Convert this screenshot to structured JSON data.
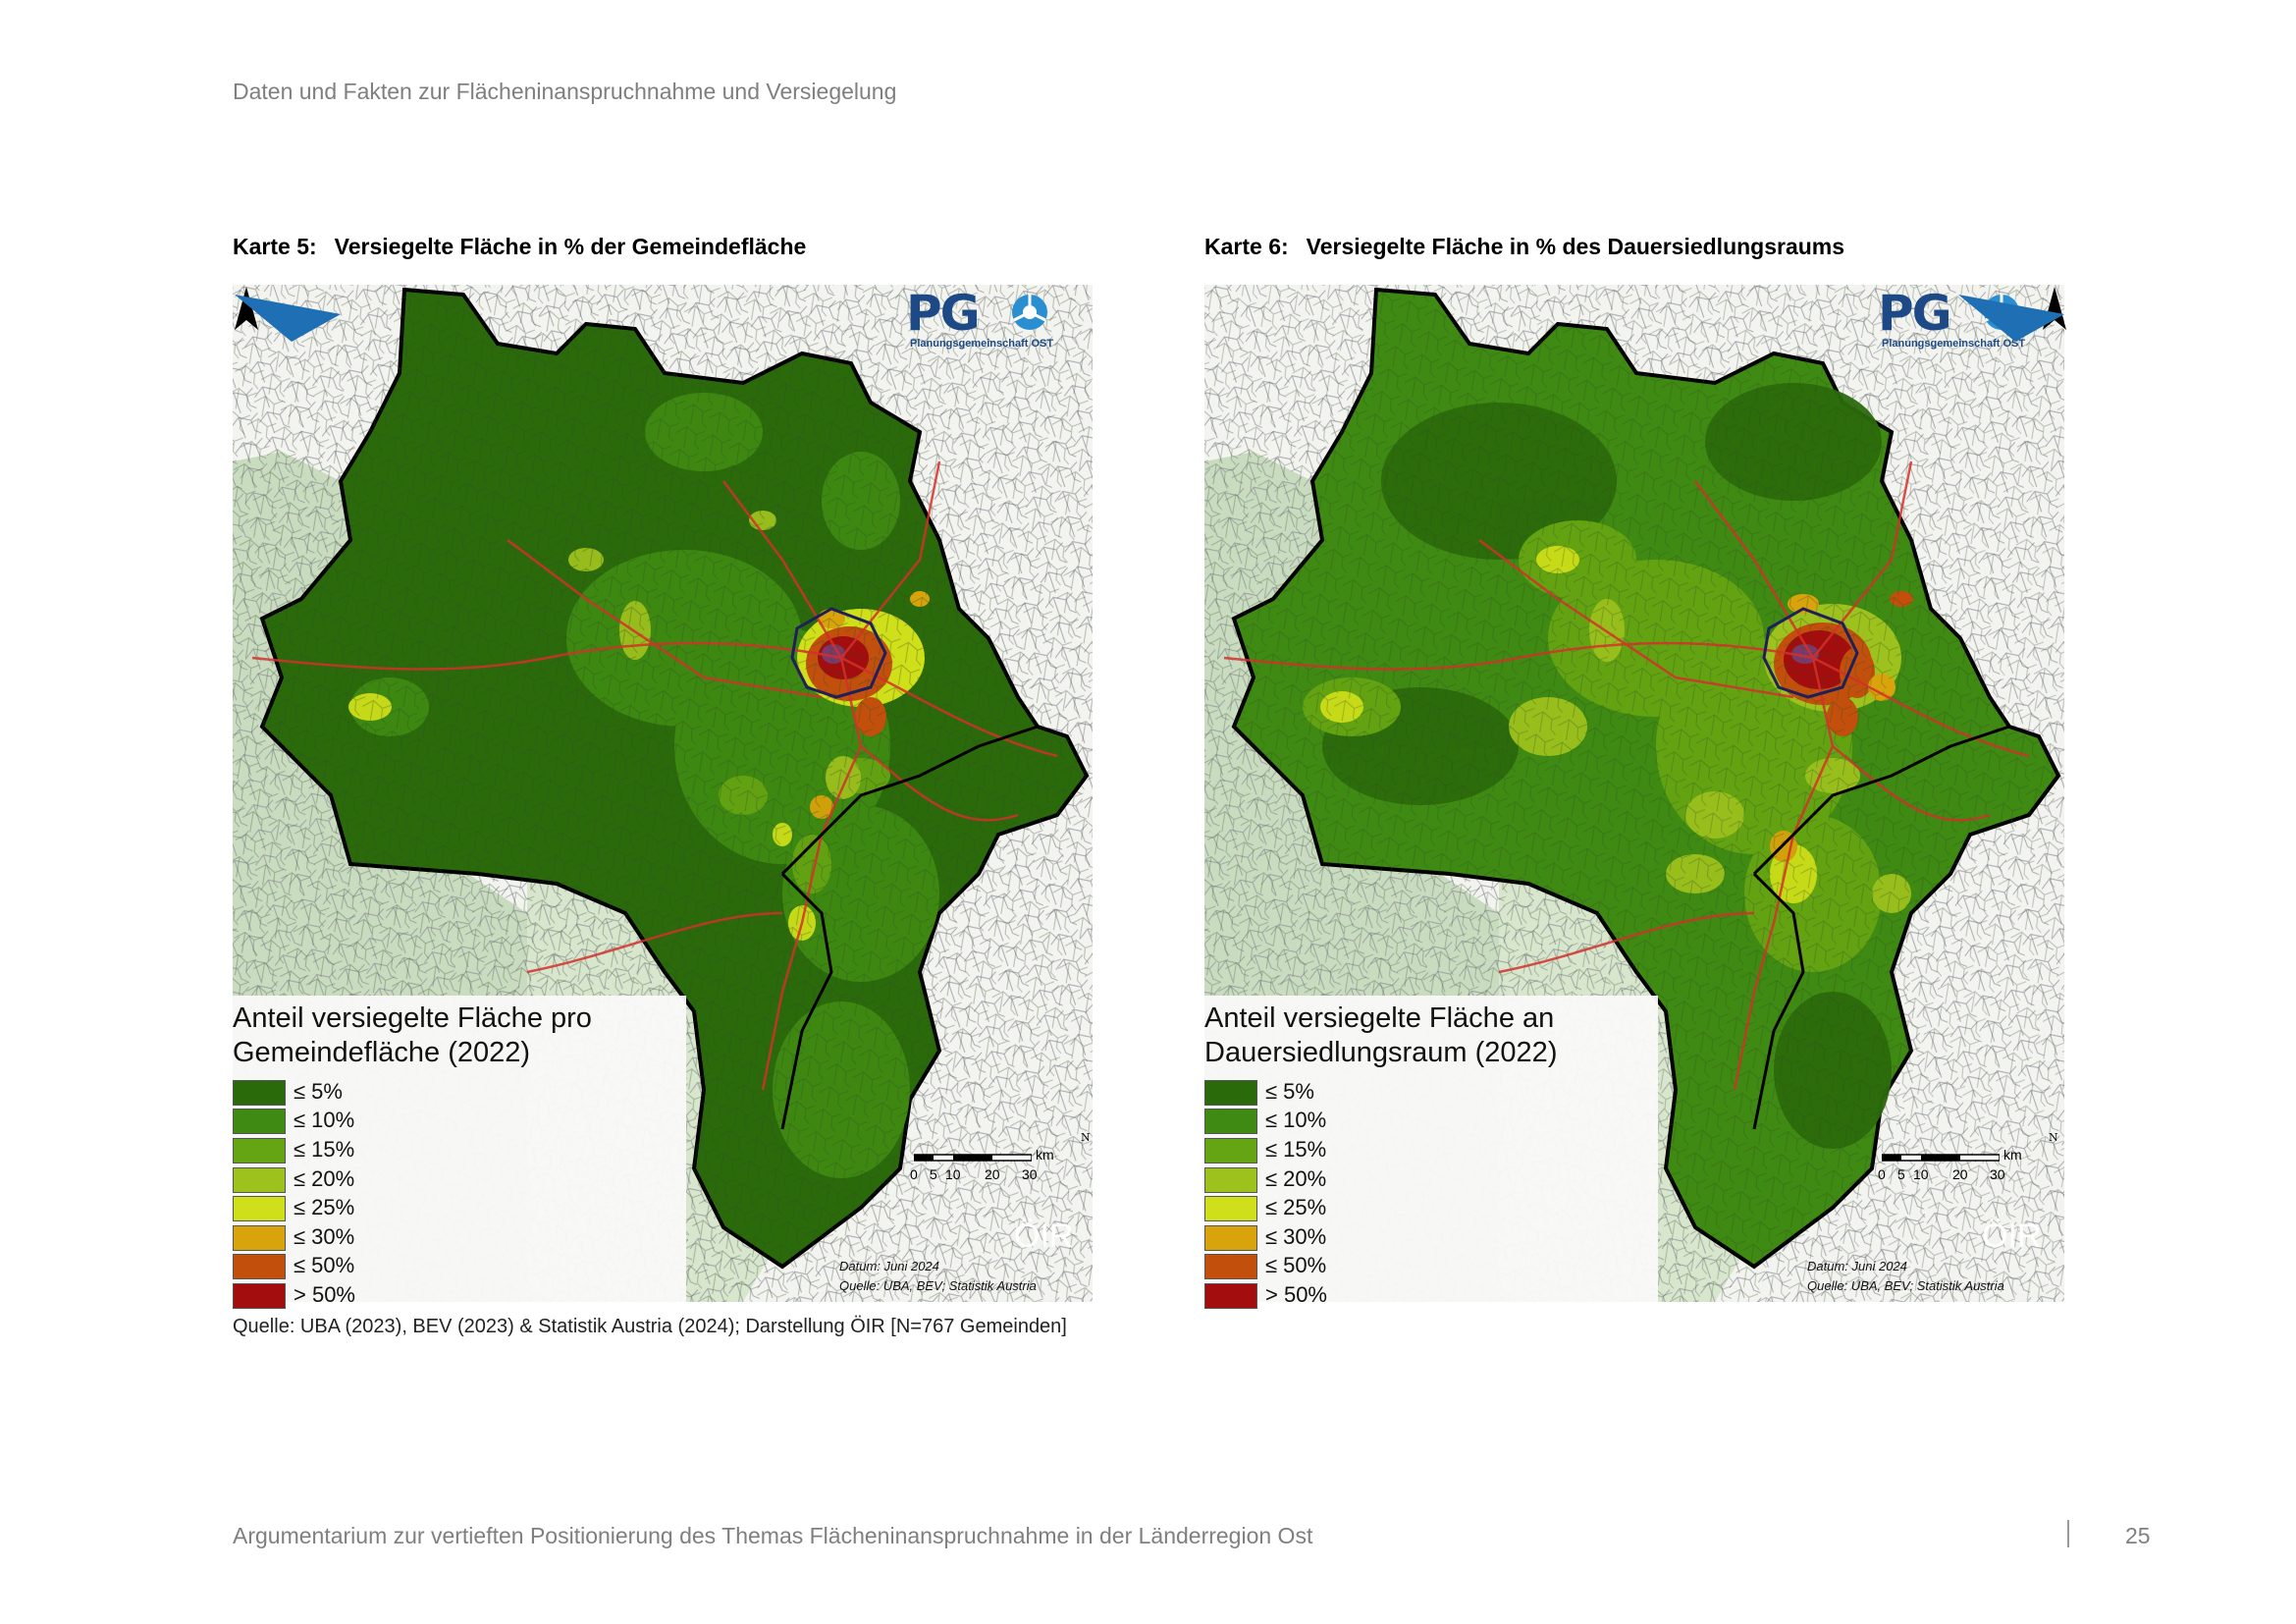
{
  "header": {
    "running_title": "Daten und Fakten zur Flächeninanspruchnahme und Versiegelung"
  },
  "maps": [
    {
      "caption_number": "Karte 5:",
      "caption_title": "Versiegelte Fläche in % der Gemeindefläche",
      "legend_title_line1": "Anteil versiegelte Fläche pro",
      "legend_title_line2": "Gemeindefläche (2022)",
      "logo_letters": "PG",
      "logo_subtitle": "Planungsgemeinschaft OST",
      "oir_logo_text": "ÖIR",
      "date_note": "Datum: Juni 2024",
      "source_note": "Quelle: UBA, BEV; Statistik Austria",
      "distribution": "mostly ≤ 5% and ≤ 10%, high values concentrated in Wien"
    },
    {
      "caption_number": "Karte 6:",
      "caption_title": "Versiegelte Fläche in % des Dauersiedlungsraums",
      "legend_title_line1": "Anteil versiegelte Fläche an",
      "legend_title_line2": "Dauersiedlungsraum (2022)",
      "logo_letters": "PG",
      "logo_subtitle": "Planungsgemeinschaft OST",
      "oir_logo_text": "ÖIR",
      "date_note": "Datum: Juni 2024",
      "source_note": "Quelle: UBA, BEV; Statistik Austria",
      "distribution": "more ≤ 15% to ≤ 25% municipalities, Wien ≤ 50% to > 50%"
    }
  ],
  "legend_classes": [
    {
      "label": "≤ 5%",
      "color": "#2b6a0b"
    },
    {
      "label": "≤ 10%",
      "color": "#3f8a12"
    },
    {
      "label": "≤ 15%",
      "color": "#65a513"
    },
    {
      "label": "≤ 20%",
      "color": "#9dc11d"
    },
    {
      "label": "≤ 25%",
      "color": "#cfdf19"
    },
    {
      "label": "≤ 30%",
      "color": "#d9a30b"
    },
    {
      "label": "≤ 50%",
      "color": "#c2500c"
    },
    {
      "label": "> 50%",
      "color": "#a30d0d"
    }
  ],
  "scale_bar": {
    "ticks": [
      "0",
      "5",
      "10",
      "20",
      "30"
    ],
    "unit": "km",
    "north_label": "N"
  },
  "source_line": "Quelle: UBA (2023), BEV (2023) & Statistik Austria (2024); Darstellung ÖIR [N=767 Gemeinden]",
  "footer": {
    "text": "Argumentarium zur vertieften Positionierung des Themas Flächeninanspruchnahme in der Länderregion Ost",
    "page_number": "25"
  },
  "colors": {
    "outside_area": "#c9dcbf",
    "outside_light": "#f3f3ef",
    "roads": "#d4302a",
    "boundary": "#000000"
  }
}
